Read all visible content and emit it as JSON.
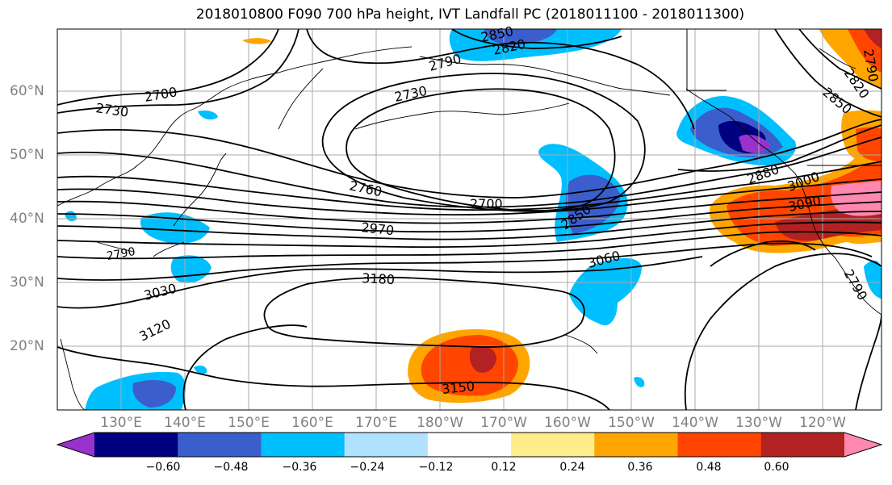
{
  "title": "2018010800 F090 700 hPa height, IVT Landfall PC (2018011100 - 2018011300)",
  "lat_labels": [
    "60°N",
    "50°N",
    "40°N",
    "30°N",
    "20°N"
  ],
  "lon_labels": [
    "130°E",
    "140°E",
    "150°E",
    "160°E",
    "170°E",
    "180°W",
    "170°W",
    "160°W",
    "150°W",
    "140°W",
    "130°W",
    "120°W"
  ],
  "contour_labels": [
    "2700",
    "2730",
    "2790",
    "2850",
    "2820",
    "2730",
    "2760",
    "2700",
    "2850",
    "2880",
    "2970",
    "3000",
    "3090",
    "3060",
    "3180",
    "3030",
    "3120",
    "3150",
    "2850",
    "2820",
    "2790",
    "2790",
    "2790"
  ],
  "colorbar": {
    "colors": [
      "#9932cc",
      "#000080",
      "#3a5fcd",
      "#00bfff",
      "#b0e2ff",
      "#ffffff",
      "#ffec8b",
      "#ffa500",
      "#ff4500",
      "#b22222",
      "#ff88b0"
    ],
    "ticks": [
      "−0.60",
      "−0.48",
      "−0.36",
      "−0.24",
      "−0.12",
      "0.12",
      "0.24",
      "0.36",
      "0.48",
      "0.60"
    ]
  }
}
